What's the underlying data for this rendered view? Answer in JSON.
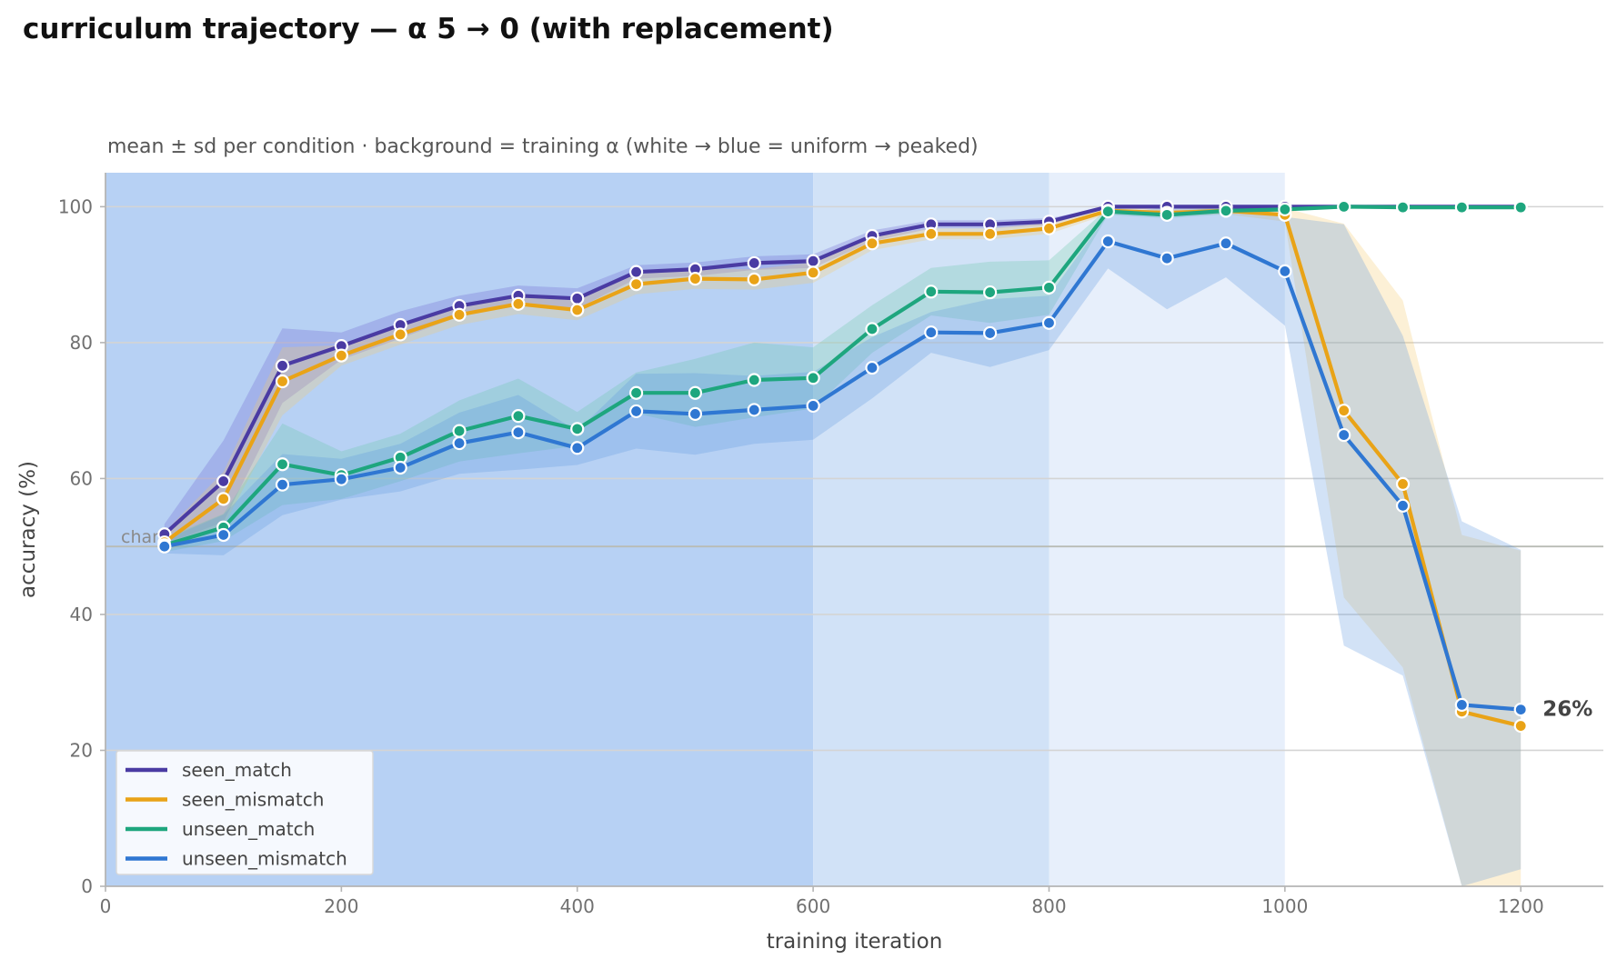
{
  "chart_data": {
    "type": "line",
    "title": "curriculum trajectory — α 5 → 0 (with replacement)",
    "subtitle": "mean ± sd per condition · background = training α (white → blue = uniform → peaked)",
    "xlabel": "training iteration",
    "ylabel": "accuracy (%)",
    "xlim": [
      0,
      1270
    ],
    "ylim": [
      0,
      105
    ],
    "xticks": [
      0,
      200,
      400,
      600,
      800,
      1000,
      1200
    ],
    "yticks": [
      0,
      20,
      40,
      60,
      80,
      100
    ],
    "grid": "horizontal",
    "legend_position": "lower-left",
    "chance": {
      "label": "chance",
      "value": 50
    },
    "end_annotation": {
      "text": "26%",
      "series": "unseen_mismatch",
      "x": 1200,
      "y": 26
    },
    "background_bands": [
      {
        "x0": 0,
        "x1": 600,
        "color": "#b7d1f4"
      },
      {
        "x0": 600,
        "x1": 800,
        "color": "#d1e2f7"
      },
      {
        "x0": 800,
        "x1": 1000,
        "color": "#e7effb"
      },
      {
        "x0": 1000,
        "x1": 1270,
        "color": "#ffffff"
      }
    ],
    "x": [
      50,
      100,
      150,
      200,
      250,
      300,
      350,
      400,
      450,
      500,
      550,
      600,
      650,
      700,
      750,
      800,
      850,
      900,
      950,
      1000,
      1050,
      1100,
      1150,
      1200
    ],
    "series": [
      {
        "name": "seen_match",
        "color": "#4a3ba3",
        "band_color": "#6b62d0",
        "values": [
          51.8,
          59.6,
          76.6,
          79.5,
          82.6,
          85.4,
          86.9,
          86.5,
          90.4,
          90.8,
          91.7,
          92.0,
          95.7,
          97.4,
          97.4,
          97.8,
          100,
          100,
          100,
          100,
          100,
          100,
          100,
          100
        ],
        "sd": [
          1.5,
          6.0,
          5.5,
          2.0,
          2.0,
          1.5,
          1.5,
          1.5,
          1.0,
          1.0,
          1.0,
          1.0,
          0.8,
          0.6,
          0.6,
          0.5,
          0,
          0,
          0,
          0,
          0,
          0,
          0,
          0
        ]
      },
      {
        "name": "seen_mismatch",
        "color": "#e9a317",
        "band_color": "#f4c96b",
        "values": [
          50.6,
          57.0,
          74.3,
          78.1,
          81.2,
          84.1,
          85.7,
          84.8,
          88.6,
          89.4,
          89.3,
          90.3,
          94.6,
          96.0,
          96.0,
          96.8,
          99.4,
          99.1,
          99.4,
          98.8,
          70.0,
          59.2,
          25.7,
          23.6
        ],
        "sd": [
          1.5,
          4.0,
          5.0,
          1.5,
          1.5,
          1.5,
          1.5,
          1.5,
          1.5,
          1.5,
          1.5,
          1.5,
          1.0,
          0.8,
          0.8,
          0.8,
          0.5,
          0.5,
          0.5,
          1.0,
          27.5,
          27.0,
          26.0,
          25.8
        ]
      },
      {
        "name": "unseen_match",
        "color": "#1ea67e",
        "band_color": "#66c4a4",
        "values": [
          50.2,
          52.8,
          62.1,
          60.5,
          63.1,
          67.0,
          69.2,
          67.3,
          72.6,
          72.6,
          74.5,
          74.8,
          82.0,
          87.5,
          87.4,
          88.1,
          99.3,
          98.8,
          99.4,
          99.6,
          100,
          99.9,
          99.9,
          99.9
        ],
        "sd": [
          1.0,
          2.0,
          6.0,
          3.5,
          3.5,
          4.5,
          5.5,
          2.5,
          3.0,
          5.0,
          5.5,
          4.5,
          3.5,
          3.5,
          4.5,
          4.0,
          0.5,
          0.5,
          0.5,
          0.3,
          0,
          0,
          0,
          0
        ]
      },
      {
        "name": "unseen_mismatch",
        "color": "#2f77d2",
        "band_color": "#5c97e0",
        "values": [
          50.0,
          51.7,
          59.1,
          59.9,
          61.6,
          65.2,
          66.8,
          64.5,
          69.9,
          69.5,
          70.1,
          70.7,
          76.3,
          81.5,
          81.4,
          82.9,
          94.9,
          92.4,
          94.6,
          90.5,
          66.4,
          56.0,
          26.7,
          26.0
        ],
        "sd": [
          1.0,
          3.0,
          4.5,
          3.0,
          3.5,
          4.5,
          5.5,
          2.5,
          5.5,
          6.0,
          5.0,
          5.0,
          4.5,
          3.0,
          5.0,
          4.0,
          4.0,
          7.5,
          5.0,
          8.0,
          31.0,
          25.0,
          27.0,
          23.5
        ]
      }
    ]
  }
}
